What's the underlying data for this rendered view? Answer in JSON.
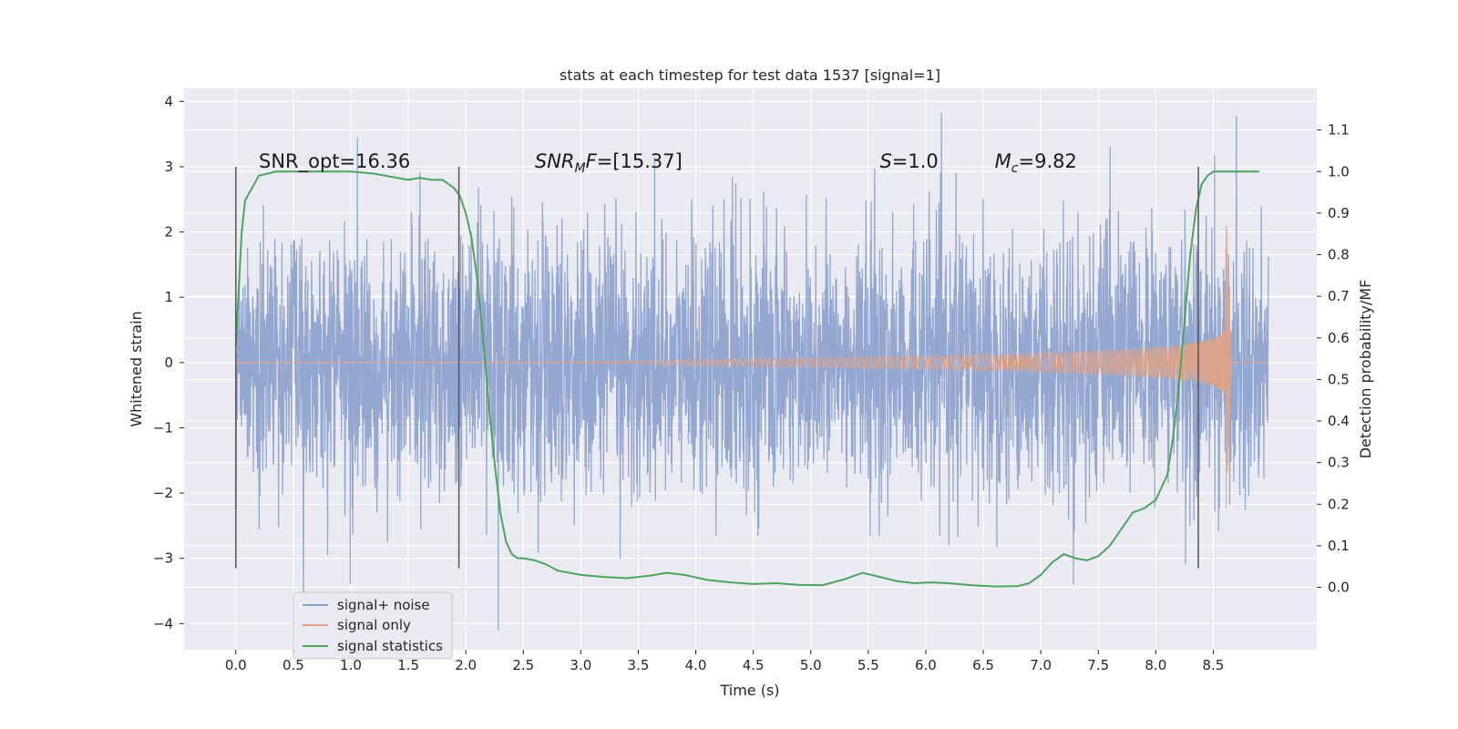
{
  "chart_data": {
    "type": "line",
    "title": "stats at each timestep for test data 1537 [signal=1]",
    "xlabel": "Time (s)",
    "ylabel": "Whitened strain",
    "ylabel_right": "Detection probability/MF",
    "xlim": [
      -0.45,
      9.4
    ],
    "ylim": [
      -4.4,
      4.2
    ],
    "ylim_right": [
      -0.15,
      1.2
    ],
    "x_ticks": [
      "0.0",
      "0.5",
      "1.0",
      "1.5",
      "2.0",
      "2.5",
      "3.0",
      "3.5",
      "4.0",
      "4.5",
      "5.0",
      "5.5",
      "6.0",
      "6.5",
      "7.0",
      "7.5",
      "8.0",
      "8.5"
    ],
    "y_ticks": [
      "4",
      "3",
      "2",
      "1",
      "0",
      "−1",
      "−2",
      "−3",
      "−4"
    ],
    "y_ticks_right": [
      "1.1",
      "1.0",
      "0.9",
      "0.8",
      "0.7",
      "0.6",
      "0.5",
      "0.4",
      "0.3",
      "0.2",
      "0.1",
      "0.0"
    ],
    "grid": true,
    "legend_position": "lower-left",
    "annotations": [
      {
        "label": "SNR_opt=16.36",
        "parts": [
          {
            "t": "SNR_opt=16.36",
            "i": false
          }
        ]
      },
      {
        "label": "SNR_MF=[15.37]",
        "parts": [
          {
            "t": "SNR",
            "i": true
          },
          {
            "t": "M",
            "i": true,
            "sub": true
          },
          {
            "t": "F",
            "i": true
          },
          {
            "t": "=[15.37]",
            "i": false
          }
        ]
      },
      {
        "label": "S=1.0",
        "parts": [
          {
            "t": "S",
            "i": true
          },
          {
            "t": "=1.0",
            "i": false
          }
        ]
      },
      {
        "label": "M_c=9.82",
        "parts": [
          {
            "t": "M",
            "i": true
          },
          {
            "t": "c",
            "i": true,
            "sub": true
          },
          {
            "t": "=9.82",
            "i": false
          }
        ]
      }
    ],
    "vertical_lines_x": [
      0.0,
      1.94,
      8.37
    ],
    "vertical_lines_range": [
      -3.15,
      3.0
    ],
    "series": [
      {
        "name": "signal+ noise",
        "color": "#8fa3cf",
        "time_range": [
          0.0,
          8.98
        ],
        "noise_std": 1.0
      },
      {
        "name": "signal only",
        "color": "#e3a384",
        "time_range": [
          0.0,
          8.98
        ],
        "merger_time": 8.66,
        "peak_amplitude": 2.5
      },
      {
        "name": "signal statistics",
        "color": "#4ea45e",
        "axis": "right",
        "x": [
          0.0,
          0.05,
          0.08,
          0.12,
          0.2,
          0.35,
          0.6,
          1.0,
          1.2,
          1.4,
          1.5,
          1.6,
          1.7,
          1.8,
          1.9,
          1.95,
          2.0,
          2.05,
          2.1,
          2.15,
          2.2,
          2.25,
          2.3,
          2.35,
          2.4,
          2.45,
          2.5,
          2.6,
          2.7,
          2.8,
          3.0,
          3.2,
          3.4,
          3.6,
          3.75,
          3.9,
          4.1,
          4.3,
          4.5,
          4.7,
          4.9,
          5.1,
          5.3,
          5.45,
          5.6,
          5.75,
          5.9,
          6.05,
          6.2,
          6.4,
          6.6,
          6.8,
          6.9,
          7.0,
          7.1,
          7.2,
          7.3,
          7.4,
          7.5,
          7.6,
          7.7,
          7.8,
          7.9,
          8.0,
          8.1,
          8.15,
          8.2,
          8.25,
          8.3,
          8.35,
          8.4,
          8.45,
          8.5,
          8.55,
          8.6,
          8.7,
          8.8,
          8.9
        ],
        "values": [
          0.58,
          0.85,
          0.93,
          0.95,
          0.99,
          1.0,
          1.0,
          1.0,
          0.995,
          0.985,
          0.98,
          0.985,
          0.98,
          0.98,
          0.96,
          0.94,
          0.9,
          0.84,
          0.74,
          0.6,
          0.44,
          0.3,
          0.18,
          0.11,
          0.08,
          0.07,
          0.07,
          0.065,
          0.055,
          0.04,
          0.03,
          0.025,
          0.022,
          0.028,
          0.035,
          0.03,
          0.018,
          0.012,
          0.008,
          0.01,
          0.006,
          0.005,
          0.02,
          0.035,
          0.025,
          0.015,
          0.01,
          0.012,
          0.01,
          0.005,
          0.002,
          0.003,
          0.01,
          0.03,
          0.06,
          0.08,
          0.07,
          0.065,
          0.075,
          0.1,
          0.14,
          0.18,
          0.19,
          0.21,
          0.27,
          0.36,
          0.48,
          0.64,
          0.8,
          0.91,
          0.97,
          0.99,
          1.0,
          1.0,
          1.0,
          1.0,
          1.0,
          1.0
        ]
      }
    ]
  }
}
